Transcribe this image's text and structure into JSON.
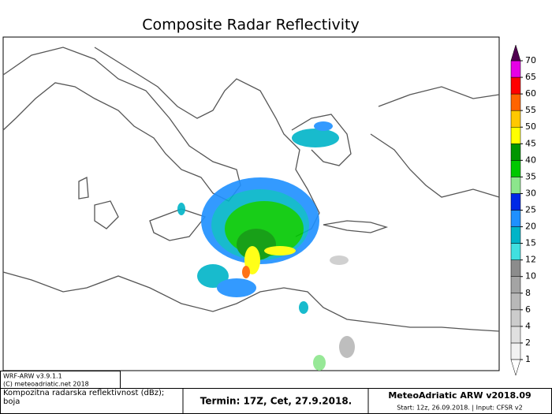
{
  "header": {
    "title": "Composite Radar Reflectivity"
  },
  "colorbar": {
    "levels": [
      1,
      2,
      4,
      6,
      8,
      10,
      12,
      15,
      20,
      25,
      30,
      35,
      40,
      45,
      50,
      55,
      60,
      65,
      70
    ],
    "colors": [
      "#f2f2f2",
      "#e0e0e0",
      "#cccccc",
      "#b8b8b8",
      "#a4a4a4",
      "#8c8c8c",
      "#40e0e0",
      "#00b4c8",
      "#1e90ff",
      "#0028e6",
      "#8ce68c",
      "#00c800",
      "#009600",
      "#ffff00",
      "#ffc800",
      "#ff6400",
      "#ff0000",
      "#e600e6"
    ],
    "under_color": "#ffffff",
    "over_color": "#500050"
  },
  "footer": {
    "model": "WRF-ARW v3.9.1.1",
    "copyright": "(C) meteoadriatic.net 2018",
    "field": "Kompozitna radarska reflektivnost (dBz); boja",
    "valid": "Termin: 17Z, Cet, 27.9.2018.",
    "product": "MeteoAdriatic ARW v2018.09",
    "run": "Start: 12z, 26.09.2018. | Input: CFSR v2"
  }
}
